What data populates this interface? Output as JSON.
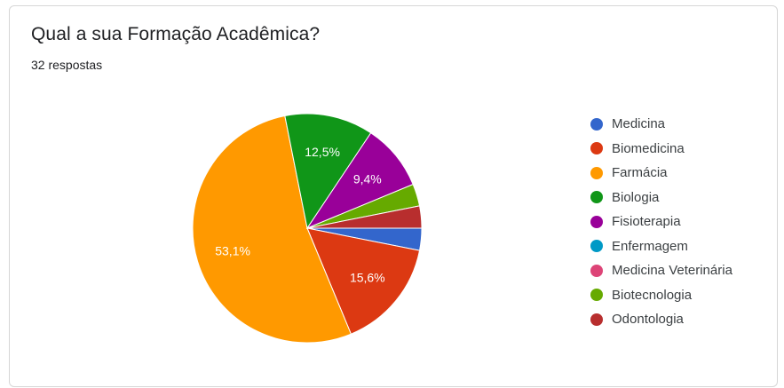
{
  "card": {
    "title": "Qual a sua Formação Acadêmica?",
    "subtitle": "32 respostas"
  },
  "chart_data": {
    "type": "pie",
    "title": "Qual a sua Formação Acadêmica?",
    "total_responses": 32,
    "legend_position": "right",
    "slices": [
      {
        "name": "Medicina",
        "value": 1,
        "percent": 3.1,
        "label": "",
        "color": "#3366cc"
      },
      {
        "name": "Biomedicina",
        "value": 5,
        "percent": 15.6,
        "label": "15,6%",
        "color": "#dc3912"
      },
      {
        "name": "Farmácia",
        "value": 17,
        "percent": 53.1,
        "label": "53,1%",
        "color": "#ff9900"
      },
      {
        "name": "Biologia",
        "value": 4,
        "percent": 12.5,
        "label": "12,5%",
        "color": "#109618"
      },
      {
        "name": "Fisioterapia",
        "value": 3,
        "percent": 9.4,
        "label": "9,4%",
        "color": "#990099"
      },
      {
        "name": "Enfermagem",
        "value": 0,
        "percent": 0,
        "label": "",
        "color": "#0099c6"
      },
      {
        "name": "Medicina Veterinária",
        "value": 0,
        "percent": 0,
        "label": "",
        "color": "#dd4477"
      },
      {
        "name": "Biotecnologia",
        "value": 1,
        "percent": 3.1,
        "label": "",
        "color": "#66aa00"
      },
      {
        "name": "Odontologia",
        "value": 1,
        "percent": 3.1,
        "label": "",
        "color": "#b82e2e"
      }
    ]
  }
}
